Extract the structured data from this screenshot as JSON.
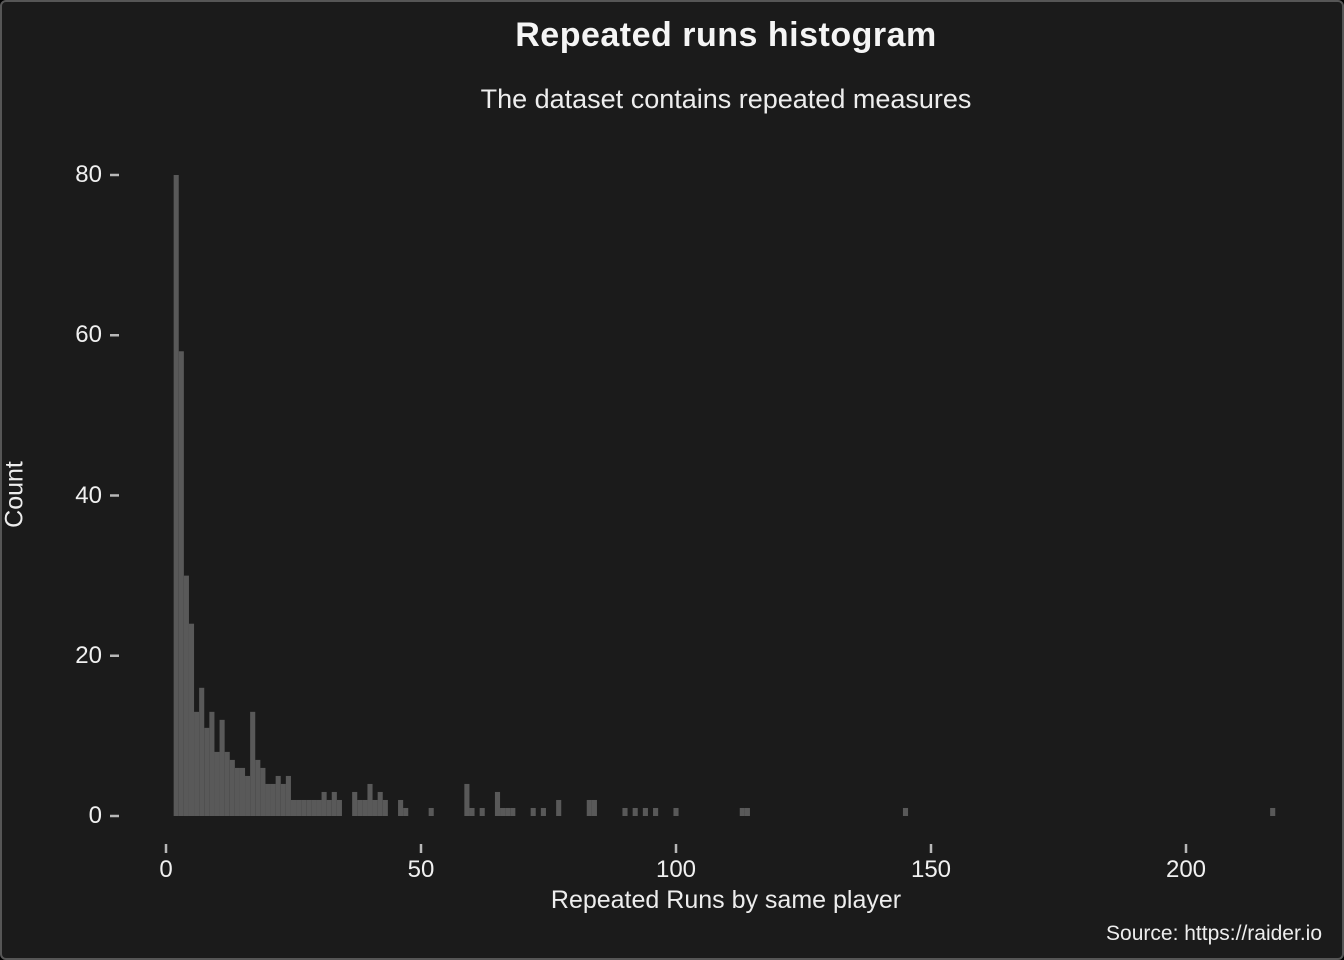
{
  "window": {
    "background_color": "#1b1b1b",
    "border_color": "#565656"
  },
  "chart_data": {
    "type": "bar",
    "subtype": "histogram",
    "title": "Repeated runs histogram",
    "subtitle": "The dataset contains repeated measures",
    "xlabel": "Repeated Runs by same player",
    "ylabel": "Count",
    "source_caption": "Source: https://raider.io",
    "bar_color": "#595959",
    "tick_color": "#b8b8b8",
    "text_color": "#f0f0f0",
    "grid": false,
    "legend": false,
    "bin_width": 1,
    "x_ticks": [
      0,
      50,
      100,
      150,
      200
    ],
    "y_ticks": [
      0,
      20,
      40,
      60,
      80
    ],
    "xlim": [
      -9,
      228
    ],
    "ylim": [
      0,
      84
    ],
    "bars": [
      {
        "x": 2,
        "count": 80
      },
      {
        "x": 3,
        "count": 58
      },
      {
        "x": 4,
        "count": 30
      },
      {
        "x": 5,
        "count": 24
      },
      {
        "x": 6,
        "count": 13
      },
      {
        "x": 7,
        "count": 16
      },
      {
        "x": 8,
        "count": 11
      },
      {
        "x": 9,
        "count": 13
      },
      {
        "x": 10,
        "count": 8
      },
      {
        "x": 11,
        "count": 12
      },
      {
        "x": 12,
        "count": 8
      },
      {
        "x": 13,
        "count": 7
      },
      {
        "x": 14,
        "count": 6
      },
      {
        "x": 15,
        "count": 6
      },
      {
        "x": 16,
        "count": 5
      },
      {
        "x": 17,
        "count": 13
      },
      {
        "x": 18,
        "count": 7
      },
      {
        "x": 19,
        "count": 6
      },
      {
        "x": 20,
        "count": 4
      },
      {
        "x": 21,
        "count": 4
      },
      {
        "x": 22,
        "count": 5
      },
      {
        "x": 23,
        "count": 4
      },
      {
        "x": 24,
        "count": 5
      },
      {
        "x": 25,
        "count": 2
      },
      {
        "x": 26,
        "count": 2
      },
      {
        "x": 27,
        "count": 2
      },
      {
        "x": 28,
        "count": 2
      },
      {
        "x": 29,
        "count": 2
      },
      {
        "x": 30,
        "count": 2
      },
      {
        "x": 31,
        "count": 3
      },
      {
        "x": 32,
        "count": 2
      },
      {
        "x": 33,
        "count": 3
      },
      {
        "x": 34,
        "count": 2
      },
      {
        "x": 37,
        "count": 3
      },
      {
        "x": 38,
        "count": 2
      },
      {
        "x": 39,
        "count": 2
      },
      {
        "x": 40,
        "count": 4
      },
      {
        "x": 41,
        "count": 2
      },
      {
        "x": 42,
        "count": 3
      },
      {
        "x": 43,
        "count": 2
      },
      {
        "x": 46,
        "count": 2
      },
      {
        "x": 47,
        "count": 1
      },
      {
        "x": 52,
        "count": 1
      },
      {
        "x": 59,
        "count": 4
      },
      {
        "x": 60,
        "count": 1
      },
      {
        "x": 62,
        "count": 1
      },
      {
        "x": 65,
        "count": 3
      },
      {
        "x": 66,
        "count": 1
      },
      {
        "x": 67,
        "count": 1
      },
      {
        "x": 68,
        "count": 1
      },
      {
        "x": 72,
        "count": 1
      },
      {
        "x": 74,
        "count": 1
      },
      {
        "x": 77,
        "count": 2
      },
      {
        "x": 83,
        "count": 2
      },
      {
        "x": 84,
        "count": 2
      },
      {
        "x": 90,
        "count": 1
      },
      {
        "x": 92,
        "count": 1
      },
      {
        "x": 94,
        "count": 1
      },
      {
        "x": 96,
        "count": 1
      },
      {
        "x": 100,
        "count": 1
      },
      {
        "x": 113,
        "count": 1
      },
      {
        "x": 114,
        "count": 1
      },
      {
        "x": 145,
        "count": 1
      },
      {
        "x": 217,
        "count": 1
      }
    ]
  }
}
